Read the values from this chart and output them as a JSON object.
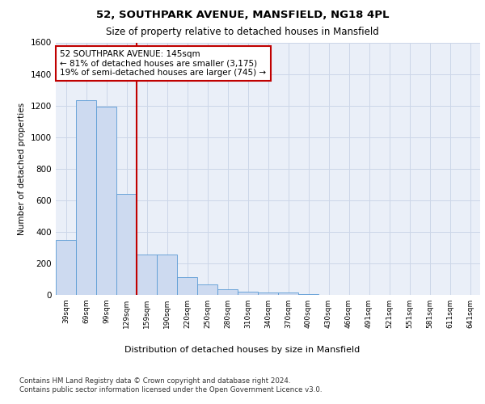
{
  "title1": "52, SOUTHPARK AVENUE, MANSFIELD, NG18 4PL",
  "title2": "Size of property relative to detached houses in Mansfield",
  "xlabel": "Distribution of detached houses by size in Mansfield",
  "ylabel": "Number of detached properties",
  "categories": [
    "39sqm",
    "69sqm",
    "99sqm",
    "129sqm",
    "159sqm",
    "190sqm",
    "220sqm",
    "250sqm",
    "280sqm",
    "310sqm",
    "340sqm",
    "370sqm",
    "400sqm",
    "430sqm",
    "460sqm",
    "491sqm",
    "521sqm",
    "551sqm",
    "581sqm",
    "611sqm",
    "641sqm"
  ],
  "values": [
    350,
    1235,
    1195,
    640,
    255,
    255,
    115,
    65,
    35,
    20,
    15,
    15,
    5,
    0,
    0,
    0,
    0,
    0,
    0,
    0,
    0
  ],
  "bar_color": "#cddaf0",
  "bar_edge_color": "#5b9bd5",
  "vline_color": "#c00000",
  "annotation_text": "52 SOUTHPARK AVENUE: 145sqm\n← 81% of detached houses are smaller (3,175)\n19% of semi-detached houses are larger (745) →",
  "annotation_box_color": "white",
  "annotation_box_edge_color": "#c00000",
  "ylim": [
    0,
    1600
  ],
  "yticks": [
    0,
    200,
    400,
    600,
    800,
    1000,
    1200,
    1400,
    1600
  ],
  "grid_color": "#ccd6e8",
  "bg_color": "#eaeff8",
  "footnote": "Contains HM Land Registry data © Crown copyright and database right 2024.\nContains public sector information licensed under the Open Government Licence v3.0."
}
